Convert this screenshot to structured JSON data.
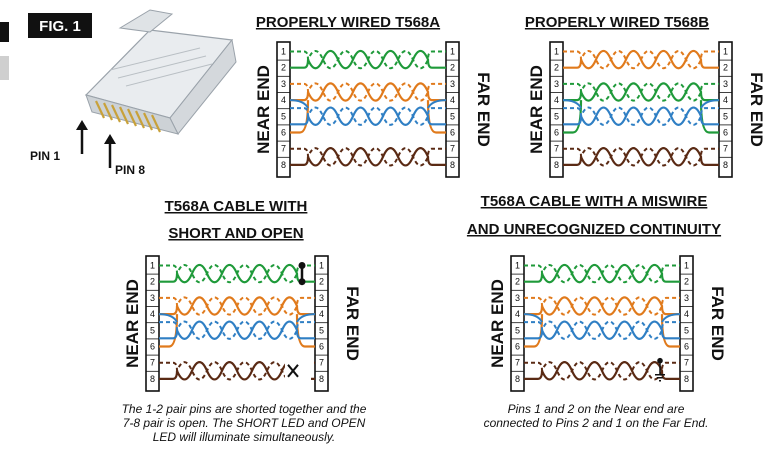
{
  "figure_label": "FIG. 1",
  "connector": {
    "pin_1_label": "PIN 1",
    "pin_8_label": "PIN 8"
  },
  "pin_numbers": [
    "1",
    "2",
    "3",
    "4",
    "5",
    "6",
    "7",
    "8"
  ],
  "end_labels": {
    "near": "NEAR END",
    "far": "FAR END"
  },
  "colors": {
    "green": "#1f9a3a",
    "orange": "#e07a1c",
    "blue": "#2f7fc4",
    "brown": "#5a2a14"
  },
  "panels": [
    {
      "id": "t568a",
      "title_lines": [
        "PROPERLY WIRED T568A"
      ],
      "pairs": [
        "green",
        "orange",
        "blue",
        "brown"
      ],
      "caption_lines": []
    },
    {
      "id": "t568b",
      "title_lines": [
        "PROPERLY WIRED T568B"
      ],
      "pairs": [
        "orange",
        "green",
        "blue",
        "brown"
      ],
      "caption_lines": []
    },
    {
      "id": "short-open",
      "title_lines": [
        "T568A CABLE WITH",
        "SHORT AND OPEN"
      ],
      "pairs": [
        "green",
        "orange",
        "blue",
        "brown"
      ],
      "caption_lines": [
        "The 1-2 pair pins are shorted together and the",
        "7-8 pair is open. The SHORT LED and OPEN",
        "LED will illuminate simultaneously."
      ]
    },
    {
      "id": "miswire",
      "title_lines": [
        "T568A CABLE WITH A MISWIRE",
        "AND UNRECOGNIZED CONTINUITY"
      ],
      "pairs": [
        "green",
        "orange",
        "blue",
        "brown"
      ],
      "caption_lines": [
        "Pins 1 and 2 on the Near end are",
        "connected to Pins 2 and 1 on the Far End."
      ]
    }
  ]
}
